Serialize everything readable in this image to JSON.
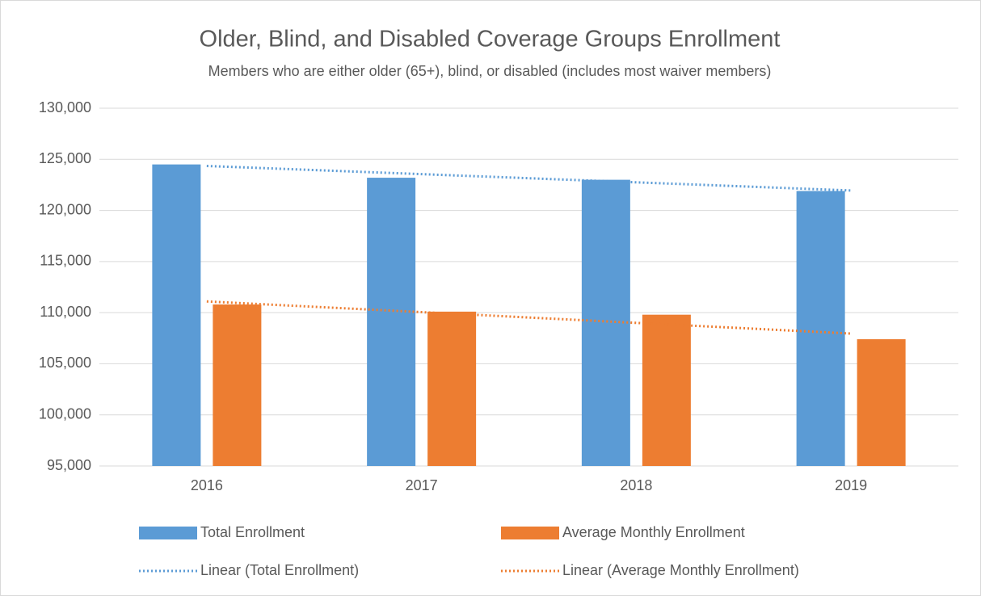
{
  "chart_data": {
    "type": "bar",
    "title": "Older, Blind, and Disabled Coverage Groups Enrollment",
    "subtitle": "Members who are either older (65+), blind, or disabled (includes most waiver members)",
    "categories": [
      "2016",
      "2017",
      "2018",
      "2019"
    ],
    "series": [
      {
        "name": "Total Enrollment",
        "color": "#5b9bd5",
        "type": "bar",
        "values": [
          124500,
          123200,
          123000,
          121900
        ]
      },
      {
        "name": "Average Monthly Enrollment",
        "color": "#ed7d31",
        "type": "bar",
        "values": [
          110800,
          110100,
          109800,
          107400
        ]
      },
      {
        "name": "Linear (Total Enrollment)",
        "color": "#5b9bd5",
        "type": "trendline",
        "values": [
          124350,
          123550,
          122750,
          121950
        ]
      },
      {
        "name": "Linear (Average Monthly Enrollment)",
        "color": "#ed7d31",
        "type": "trendline",
        "values": [
          111100,
          110050,
          109000,
          107950
        ]
      }
    ],
    "ylim": [
      95000,
      130000
    ],
    "yticks": [
      {
        "value": 95000,
        "label": "95,000"
      },
      {
        "value": 100000,
        "label": "100,000"
      },
      {
        "value": 105000,
        "label": "105,000"
      },
      {
        "value": 110000,
        "label": "110,000"
      },
      {
        "value": 115000,
        "label": "115,000"
      },
      {
        "value": 120000,
        "label": "120,000"
      },
      {
        "value": 125000,
        "label": "125,000"
      },
      {
        "value": 130000,
        "label": "130,000"
      }
    ],
    "grid": true,
    "legend": "bottom"
  }
}
